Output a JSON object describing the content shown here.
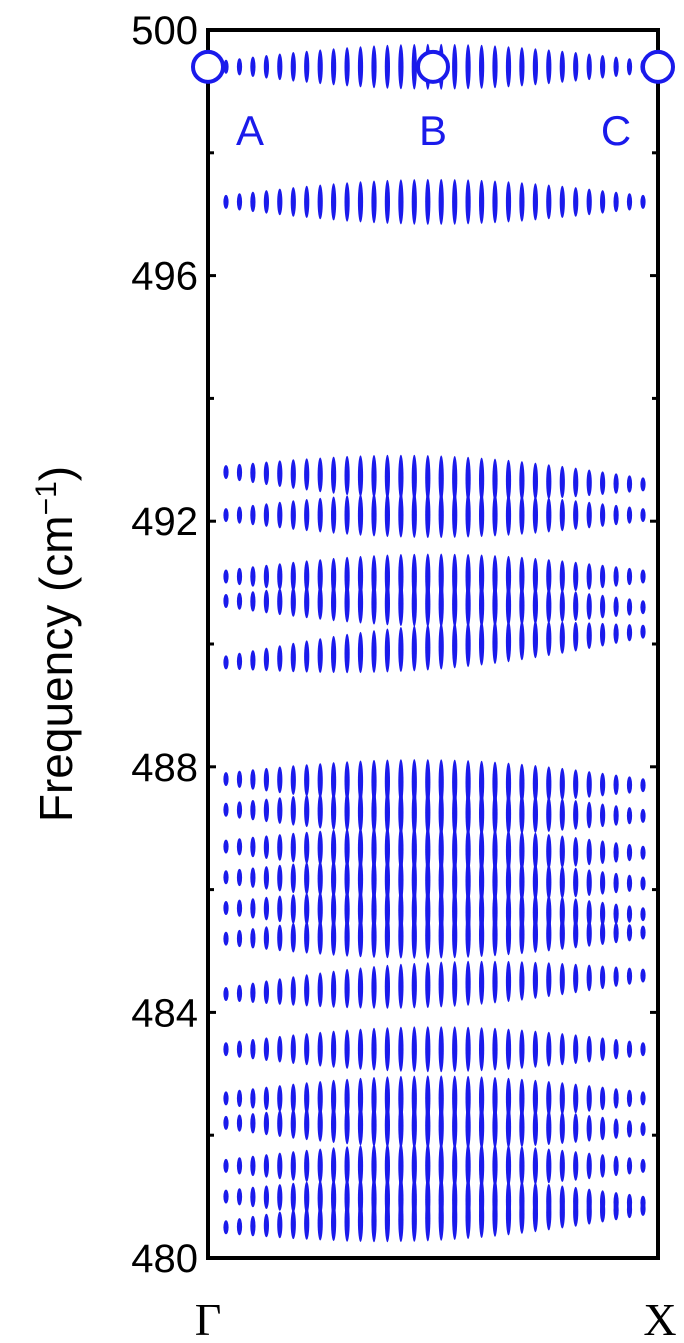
{
  "chart_data": {
    "type": "scatter",
    "title": "",
    "xlabel": "",
    "ylabel": "Frequency (cm",
    "ylabel_superscript": "−1",
    "ylabel_close": ")",
    "ylim": [
      480,
      500
    ],
    "y_ticks": [
      480,
      484,
      488,
      492,
      496,
      500
    ],
    "y_tick_labels": [
      "480",
      "484",
      "488",
      "492",
      "496",
      "500"
    ],
    "x_ticks": [
      "Γ",
      "X"
    ],
    "grid": false,
    "marker_color": "#1a1aeb",
    "columns": 32,
    "bands": [
      {
        "start": 499.4,
        "end": 499.4
      },
      {
        "start": 497.2,
        "end": 497.2
      },
      {
        "start": 492.8,
        "end": 492.6
      },
      {
        "start": 492.1,
        "end": 492.1
      },
      {
        "start": 491.1,
        "end": 491.1
      },
      {
        "start": 490.7,
        "end": 490.6
      },
      {
        "start": 489.7,
        "end": 490.2
      },
      {
        "start": 487.8,
        "end": 487.7
      },
      {
        "start": 487.3,
        "end": 487.2
      },
      {
        "start": 486.7,
        "end": 486.6
      },
      {
        "start": 486.2,
        "end": 486.1
      },
      {
        "start": 485.7,
        "end": 485.6
      },
      {
        "start": 485.2,
        "end": 485.3
      },
      {
        "start": 484.3,
        "end": 484.6
      },
      {
        "start": 483.4,
        "end": 483.4
      },
      {
        "start": 482.6,
        "end": 482.6
      },
      {
        "start": 482.2,
        "end": 482.1
      },
      {
        "start": 481.5,
        "end": 481.5
      },
      {
        "start": 481.0,
        "end": 480.9
      },
      {
        "start": 480.5,
        "end": 480.8
      }
    ],
    "annotations": [
      {
        "label": "A",
        "x": 0.0,
        "y": 499.4
      },
      {
        "label": "B",
        "x": 0.5,
        "y": 499.4
      },
      {
        "label": "C",
        "x": 1.0,
        "y": 499.4
      }
    ]
  }
}
